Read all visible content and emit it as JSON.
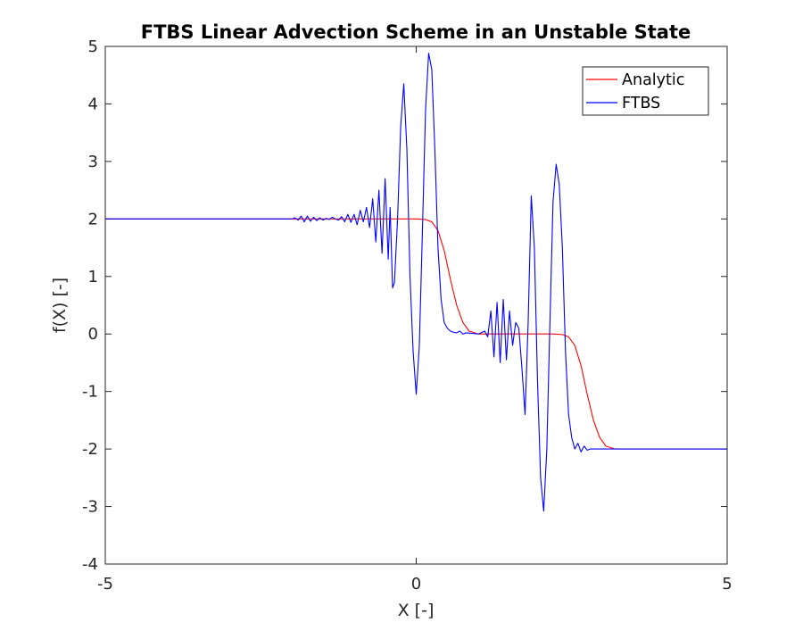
{
  "chart_data": {
    "type": "line",
    "title": "FTBS Linear Advection Scheme in an Unstable State",
    "xlabel": "X [-]",
    "ylabel": "f(X) [-]",
    "xlim": [
      -5,
      5
    ],
    "ylim": [
      -4,
      5
    ],
    "xticks": [
      "-5",
      "0",
      "5"
    ],
    "yticks": [
      "-4",
      "-3",
      "-2",
      "-1",
      "0",
      "1",
      "2",
      "3",
      "4",
      "5"
    ],
    "grid": false,
    "legend_position": "top-right",
    "series": [
      {
        "name": "Analytic",
        "color": "#ff0000",
        "x": [
          -5,
          0,
          0.15,
          0.25,
          0.35,
          0.45,
          0.55,
          0.65,
          0.75,
          0.85,
          1.0,
          2.2,
          2.35,
          2.45,
          2.55,
          2.65,
          2.75,
          2.85,
          2.95,
          3.05,
          3.2,
          5
        ],
        "y": [
          2,
          2,
          1.99,
          1.95,
          1.8,
          1.45,
          0.95,
          0.5,
          0.2,
          0.05,
          0,
          0,
          -0.01,
          -0.05,
          -0.2,
          -0.55,
          -1.05,
          -1.5,
          -1.8,
          -1.95,
          -2,
          -2
        ]
      },
      {
        "name": "FTBS",
        "color": "#0000ff",
        "x": [
          -5,
          -2.0,
          -1.95,
          -1.9,
          -1.85,
          -1.8,
          -1.75,
          -1.7,
          -1.65,
          -1.6,
          -1.55,
          -1.5,
          -1.45,
          -1.4,
          -1.35,
          -1.3,
          -1.25,
          -1.2,
          -1.15,
          -1.1,
          -1.05,
          -1.0,
          -0.95,
          -0.9,
          -0.85,
          -0.8,
          -0.75,
          -0.7,
          -0.65,
          -0.6,
          -0.55,
          -0.5,
          -0.45,
          -0.42,
          -0.38,
          -0.35,
          -0.3,
          -0.25,
          -0.2,
          -0.15,
          -0.1,
          -0.05,
          0.0,
          0.05,
          0.1,
          0.15,
          0.2,
          0.25,
          0.3,
          0.35,
          0.4,
          0.45,
          0.5,
          0.55,
          0.6,
          0.65,
          0.7,
          0.75,
          0.8,
          0.9,
          1.0,
          1.1,
          1.15,
          1.2,
          1.25,
          1.3,
          1.35,
          1.4,
          1.45,
          1.5,
          1.55,
          1.6,
          1.65,
          1.7,
          1.75,
          1.8,
          1.85,
          1.9,
          1.95,
          2.0,
          2.05,
          2.1,
          2.15,
          2.2,
          2.25,
          2.3,
          2.35,
          2.4,
          2.45,
          2.5,
          2.55,
          2.6,
          2.65,
          2.7,
          2.75,
          2.8,
          2.85,
          2.9,
          2.95,
          3.0,
          3.1,
          3.2,
          5
        ],
        "y": [
          2,
          2,
          2.02,
          1.98,
          2.05,
          1.95,
          2.05,
          1.96,
          2.03,
          1.97,
          2.02,
          1.98,
          2.01,
          1.99,
          2.03,
          2.0,
          1.98,
          2.04,
          1.95,
          2.08,
          1.94,
          2.08,
          1.9,
          2.15,
          1.95,
          2.2,
          1.85,
          2.35,
          1.6,
          2.5,
          1.4,
          2.7,
          1.3,
          2.2,
          0.8,
          0.9,
          2.0,
          3.6,
          4.35,
          3.2,
          1.0,
          -0.3,
          -1.05,
          -0.2,
          1.8,
          3.9,
          4.88,
          4.6,
          3.2,
          1.5,
          0.6,
          0.2,
          0.1,
          0.05,
          0.03,
          0.02,
          0.05,
          0.0,
          0.02,
          0.01,
          0.0,
          0.05,
          -0.05,
          0.4,
          -0.4,
          0.55,
          -0.5,
          0.6,
          -0.45,
          0.4,
          -0.2,
          0.2,
          0.1,
          -0.6,
          -1.4,
          0.2,
          2.4,
          1.5,
          -0.8,
          -2.5,
          -3.08,
          -2.0,
          0.2,
          2.3,
          2.95,
          2.6,
          1.5,
          -0.3,
          -1.4,
          -1.8,
          -2.0,
          -1.9,
          -2.05,
          -1.95,
          -2.02,
          -2.0,
          -2.0,
          -2.0,
          -2.0,
          -2.0,
          -2.0,
          -2.0,
          -2
        ]
      }
    ]
  }
}
